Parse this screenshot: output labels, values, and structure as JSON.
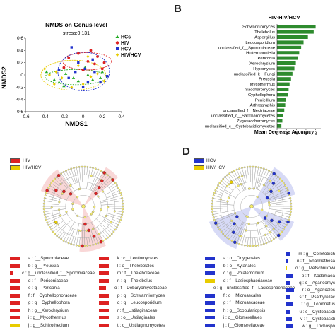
{
  "panels": {
    "B": "B",
    "D": "D"
  },
  "chart_data": [
    {
      "type": "scatter",
      "title": "NMDS on Genus level",
      "subtitle": "stress:0.131",
      "xlabel": "NMDS1",
      "ylabel": "NMDS2",
      "xlim": [
        -0.6,
        0.4
      ],
      "ylim": [
        -0.6,
        0.6
      ],
      "xticks": [
        "-0.6",
        "-0.4",
        "-0.2",
        "0",
        "0.2",
        "0.4"
      ],
      "yticks": [
        "0.6",
        "0.4",
        "0.2",
        "0",
        "-0.2",
        "-0.4",
        "-0.6"
      ],
      "legend_position": "top-right",
      "series": [
        {
          "name": "HCs",
          "color": "#22aa22",
          "marker": "triangle",
          "points": [
            [
              -0.38,
              0.05
            ],
            [
              -0.3,
              -0.08
            ],
            [
              -0.25,
              -0.12
            ],
            [
              -0.18,
              0.02
            ],
            [
              -0.1,
              -0.05
            ],
            [
              -0.05,
              -0.1
            ],
            [
              0.05,
              0.0
            ],
            [
              0.1,
              -0.08
            ],
            [
              0.18,
              -0.05
            ],
            [
              -0.2,
              -0.18
            ],
            [
              0.02,
              0.12
            ],
            [
              0.2,
              0.05
            ]
          ]
        },
        {
          "name": "HIV",
          "color": "#dd2222",
          "marker": "circle",
          "points": [
            [
              -0.15,
              0.28
            ],
            [
              -0.05,
              0.35
            ],
            [
              0.05,
              0.22
            ],
            [
              0.12,
              0.18
            ],
            [
              0.2,
              0.1
            ],
            [
              -0.2,
              0.12
            ],
            [
              0.0,
              0.08
            ],
            [
              0.15,
              0.3
            ],
            [
              0.22,
              0.2
            ],
            [
              0.08,
              0.4
            ]
          ]
        },
        {
          "name": "HCV",
          "color": "#2233cc",
          "marker": "square",
          "points": [
            [
              -0.12,
              0.45
            ],
            [
              0.02,
              0.1
            ],
            [
              -0.08,
              0.05
            ],
            [
              0.05,
              -0.12
            ],
            [
              0.12,
              0.05
            ],
            [
              -0.15,
              -0.05
            ],
            [
              0.18,
              -0.12
            ],
            [
              -0.25,
              0.08
            ],
            [
              0.25,
              -0.02
            ],
            [
              0.0,
              -0.2
            ],
            [
              0.1,
              0.25
            ],
            [
              -0.05,
              0.2
            ]
          ]
        },
        {
          "name": "HIV/HCV",
          "color": "#e8cc00",
          "marker": "diamond",
          "points": [
            [
              -0.35,
              0.0
            ],
            [
              -0.28,
              0.05
            ],
            [
              -0.22,
              -0.05
            ],
            [
              -0.3,
              -0.15
            ],
            [
              -0.12,
              -0.2
            ],
            [
              0.0,
              -0.15
            ],
            [
              0.15,
              0.02
            ],
            [
              0.08,
              -0.03
            ],
            [
              -0.05,
              0.15
            ],
            [
              -0.4,
              0.1
            ],
            [
              0.05,
              0.3
            ],
            [
              0.22,
              -0.1
            ]
          ]
        }
      ]
    },
    {
      "type": "bar",
      "orientation": "horizontal",
      "title": "HIV-HIV/HCV",
      "xlabel": "Mean Decrease Accuracy",
      "ylabel": "",
      "xlim": [
        0,
        8.5
      ],
      "xticks": [
        "0",
        "2",
        "4",
        "6",
        "8"
      ],
      "color": "#2e8b2e",
      "categories": [
        "Schwanniomyces",
        "Thelebolus",
        "Aspergillus",
        "Leucosporidium",
        "unclassified_f__Sporomiaceae",
        "Holtermanniella",
        "Periconia",
        "Xerochrysium",
        "Hypomyces",
        "unclassified_k__Fungi",
        "Preussia",
        "Mycothermus",
        "Saccharomyces",
        "Cyphellophora",
        "Penicillium",
        "Arthrographis",
        "unclassified_f__Nectriaceae",
        "unclassified_c__Saccharomycetes",
        "Zygosaccharomyces",
        "unclassified_c__Cystobasidiomycetes"
      ],
      "values": [
        8.0,
        7.6,
        6.4,
        5.5,
        5.0,
        4.6,
        4.3,
        3.9,
        3.6,
        3.2,
        2.9,
        2.6,
        2.4,
        2.2,
        1.9,
        1.7,
        1.5,
        1.3,
        1.1,
        0.9
      ]
    }
  ],
  "cladogram_c": {
    "legend": [
      {
        "name": "HIV",
        "color": "#dd2222"
      },
      {
        "name": "HIV/HCV",
        "color": "#e8cc00"
      }
    ],
    "items_left": [
      {
        "label": "a : f__Sporomiaceae",
        "color": "#dd2222"
      },
      {
        "label": "b : g__Preussia",
        "color": "#dd2222"
      },
      {
        "label": "c : g__unclassified_f__Sporomiaceae",
        "color": "#dd2222"
      },
      {
        "label": "d : f__Periconiaceae",
        "color": "#dd2222"
      },
      {
        "label": "e : g__Periconia",
        "color": "#dd2222"
      },
      {
        "label": "f : f__Cyphellophoraceae",
        "color": "#dd2222"
      },
      {
        "label": "g : g__Cyphellophora",
        "color": "#dd2222"
      },
      {
        "label": "h : g__Xerochrysium",
        "color": "#dd2222"
      },
      {
        "label": "i : g__Mycothermus",
        "color": "#dd2222"
      },
      {
        "label": "j : g__Schizothecium",
        "color": "#e8cc00"
      }
    ],
    "items_right": [
      {
        "label": "k : c__Leotiomycetes",
        "color": "#dd2222"
      },
      {
        "label": "l : o__Thelebolales",
        "color": "#dd2222"
      },
      {
        "label": "m : f__Thelebolaceae",
        "color": "#dd2222"
      },
      {
        "label": "n : g__Thelebolus",
        "color": "#dd2222"
      },
      {
        "label": "o : f__Debaryomycetaceae",
        "color": "#dd2222"
      },
      {
        "label": "p : g__Schwanniomyces",
        "color": "#dd2222"
      },
      {
        "label": "q : g__Leucosporidium",
        "color": "#dd2222"
      },
      {
        "label": "r : f__Ustilaginaceae",
        "color": "#dd2222"
      },
      {
        "label": "s : o__Ustilaginales",
        "color": "#dd2222"
      },
      {
        "label": "t : c__Ustilaginomycetes",
        "color": "#dd2222"
      }
    ]
  },
  "cladogram_d": {
    "legend": [
      {
        "name": "HCV",
        "color": "#2233cc"
      },
      {
        "name": "HIV/HCV",
        "color": "#e8cc00"
      }
    ],
    "items_left": [
      {
        "label": "a : o__Onygenales",
        "color": "#2233cc"
      },
      {
        "label": "b : o__Xylariales",
        "color": "#2233cc"
      },
      {
        "label": "c : g__Phialemonium",
        "color": "#2233cc"
      },
      {
        "label": "d : f__Lasiosphaeriaceae",
        "color": "#e8cc00"
      },
      {
        "label": "e : g__unclassified_f__Lasiosphaeriaceae",
        "color": "#2233cc"
      },
      {
        "label": "f : o__Microascales",
        "color": "#2233cc"
      },
      {
        "label": "g : f__Microascaceae",
        "color": "#2233cc"
      },
      {
        "label": "h : g__Scopulariopsis",
        "color": "#2233cc"
      },
      {
        "label": "i : o__Glomerellales",
        "color": "#2233cc"
      },
      {
        "label": "j : f__Glomerellaceae",
        "color": "#2233cc"
      }
    ],
    "items_right": [
      {
        "label": "m : g__Colletotrich",
        "color": "#2233cc"
      },
      {
        "label": "n : f__Enarmotheca",
        "color": "#2233cc"
      },
      {
        "label": "o : g__Metschnikowi",
        "color": "#e8cc00"
      },
      {
        "label": "p : f__Kodamaea",
        "color": "#2233cc"
      },
      {
        "label": "q : c__Agaricomyc",
        "color": "#2233cc"
      },
      {
        "label": "r : o__Agaricales",
        "color": "#2233cc"
      },
      {
        "label": "s : f__Psathyrellac",
        "color": "#2233cc"
      },
      {
        "label": "t : g__Lopinnetus",
        "color": "#2233cc"
      },
      {
        "label": "u : c__Cystobasidi",
        "color": "#2233cc"
      },
      {
        "label": "v : f__Cystobasidi",
        "color": "#2233cc"
      },
      {
        "label": "w : g__Trichospo",
        "color": "#2233cc"
      }
    ]
  }
}
